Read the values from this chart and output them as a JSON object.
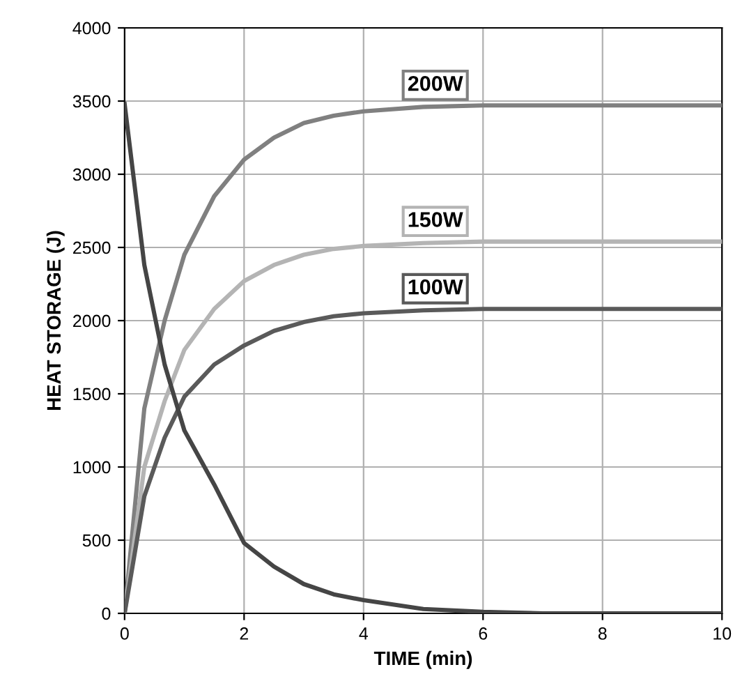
{
  "chart_data": {
    "type": "line",
    "xlabel": "TIME (min)",
    "ylabel": "HEAT STORAGE (J)",
    "xlim": [
      0,
      10
    ],
    "xticks": [
      0,
      2,
      4,
      6,
      8,
      10
    ],
    "ylim": [
      0,
      4000
    ],
    "yticks": [
      0,
      500,
      1000,
      1500,
      2000,
      2500,
      3000,
      3500,
      4000
    ],
    "grid": true,
    "series": [
      {
        "name": "200W",
        "color": "#808080",
        "x": [
          0,
          0.33,
          0.67,
          1,
          1.5,
          2,
          2.5,
          3,
          3.5,
          4,
          5,
          6,
          7,
          8,
          10
        ],
        "values": [
          0,
          1400,
          2000,
          2450,
          2850,
          3100,
          3250,
          3350,
          3400,
          3430,
          3460,
          3470,
          3470,
          3470,
          3470
        ]
      },
      {
        "name": "150W",
        "color": "#b4b4b4",
        "x": [
          0,
          0.33,
          0.67,
          1,
          1.5,
          2,
          2.5,
          3,
          3.5,
          4,
          5,
          6,
          7,
          8,
          10
        ],
        "values": [
          0,
          1000,
          1450,
          1800,
          2080,
          2270,
          2380,
          2450,
          2490,
          2510,
          2530,
          2540,
          2540,
          2540,
          2540
        ]
      },
      {
        "name": "100W",
        "color": "#5a5a5a",
        "x": [
          0,
          0.33,
          0.67,
          1,
          1.5,
          2,
          2.5,
          3,
          3.5,
          4,
          5,
          6,
          7,
          8,
          10
        ],
        "values": [
          0,
          800,
          1200,
          1480,
          1700,
          1830,
          1930,
          1990,
          2030,
          2050,
          2070,
          2080,
          2080,
          2080,
          2080
        ]
      },
      {
        "color": "#454545",
        "x": [
          0,
          0.33,
          0.67,
          1,
          1.5,
          2,
          2.5,
          3,
          3.5,
          4,
          5,
          6,
          7,
          8,
          10
        ],
        "values": [
          3480,
          2380,
          1700,
          1250,
          880,
          480,
          320,
          200,
          130,
          90,
          30,
          10,
          0,
          0,
          0
        ]
      }
    ]
  }
}
